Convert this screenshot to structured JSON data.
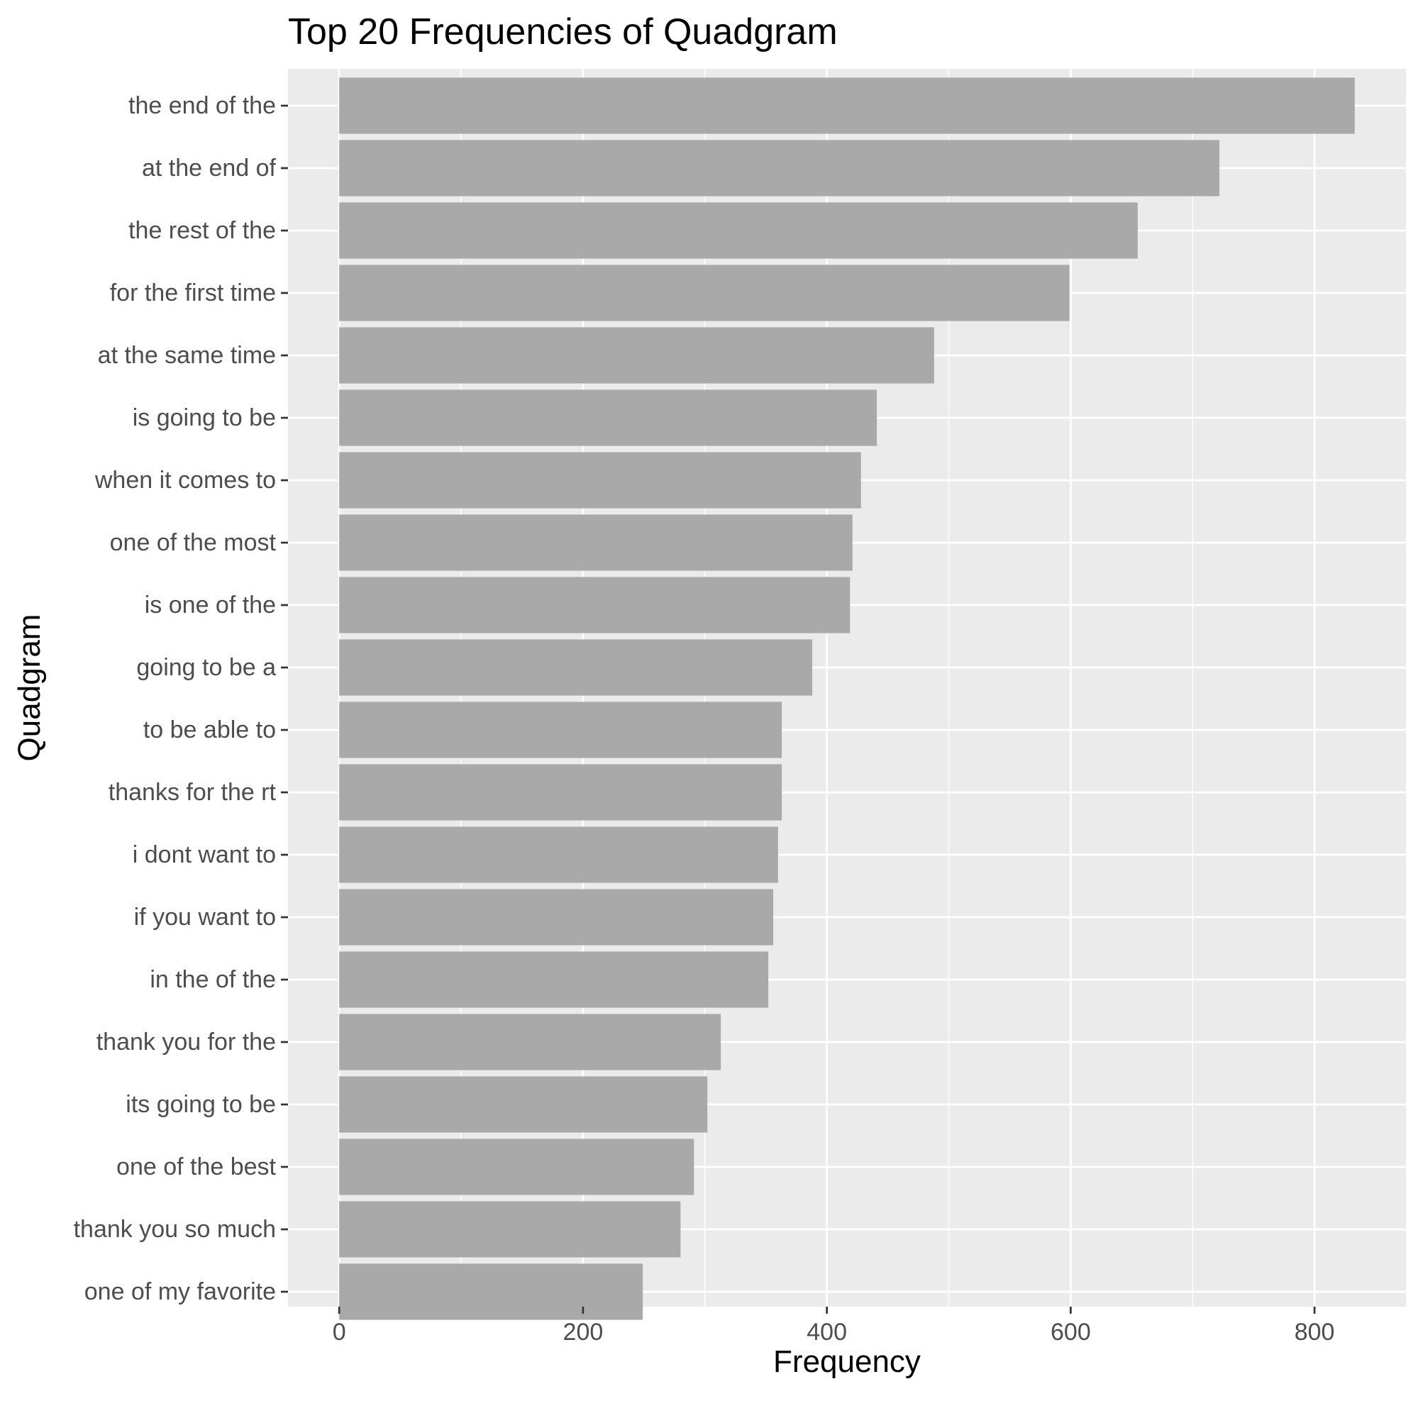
{
  "chart_data": {
    "type": "bar",
    "orientation": "horizontal",
    "title": "Top 20 Frequencies of Quadgram",
    "xlabel": "Frequency",
    "ylabel": "Quadgram",
    "xlim": [
      -42,
      875
    ],
    "xticks": [
      0,
      200,
      400,
      600,
      800
    ],
    "grid": true,
    "categories": [
      "the end of the",
      "at the end of",
      "the rest of the",
      "for the first time",
      "at the same time",
      "is going to be",
      "when it comes to",
      "one of the most",
      "is one of the",
      "going to be a",
      "to be able to",
      "thanks for the rt",
      "i dont want to",
      "if you want to",
      "in the of the",
      "thank you for the",
      "its going to be",
      "one of the best",
      "thank you so much",
      "one of my favorite"
    ],
    "values": [
      833,
      722,
      655,
      599,
      488,
      441,
      428,
      421,
      419,
      388,
      363,
      363,
      360,
      356,
      352,
      313,
      302,
      291,
      280,
      249
    ],
    "colors": {
      "bar": "#a9a9a9",
      "panel": "#ebebeb",
      "grid": "#ffffff",
      "tick": "#333333"
    }
  }
}
